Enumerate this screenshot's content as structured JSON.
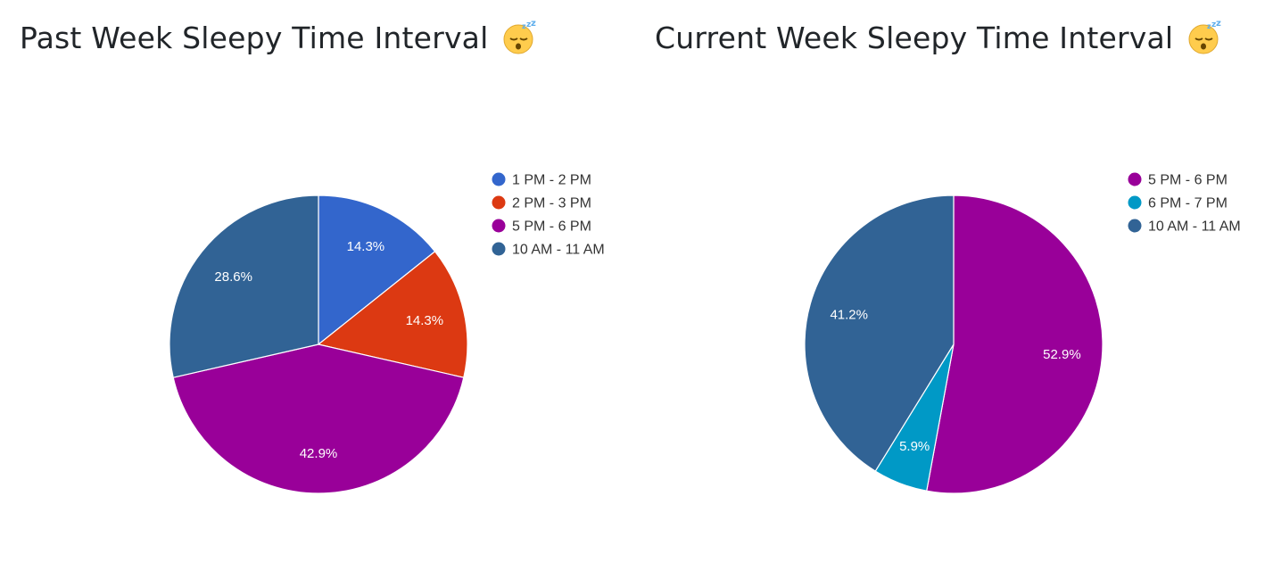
{
  "chart_data": [
    {
      "type": "pie",
      "title": "Past Week Sleepy Time Interval",
      "title_icon": "sleeping-face-emoji",
      "categories": [
        "1 PM - 2 PM",
        "2 PM - 3 PM",
        "5 PM - 6 PM",
        "10 AM - 11 AM"
      ],
      "values": [
        14.3,
        14.3,
        42.9,
        28.6
      ],
      "labels": [
        "14.3%",
        "14.3%",
        "42.9%",
        "28.6%"
      ],
      "colors": [
        "#3366cc",
        "#dc3912",
        "#990099",
        "#316395"
      ],
      "legend": "right"
    },
    {
      "type": "pie",
      "title": "Current Week Sleepy Time Interval",
      "title_icon": "sleeping-face-emoji",
      "categories": [
        "5 PM - 6 PM",
        "6 PM - 7 PM",
        "10 AM - 11 AM"
      ],
      "values": [
        52.9,
        5.9,
        41.2
      ],
      "labels": [
        "52.9%",
        "5.9%",
        "41.2%"
      ],
      "colors": [
        "#990099",
        "#0099c6",
        "#316395"
      ],
      "legend": "right"
    }
  ]
}
